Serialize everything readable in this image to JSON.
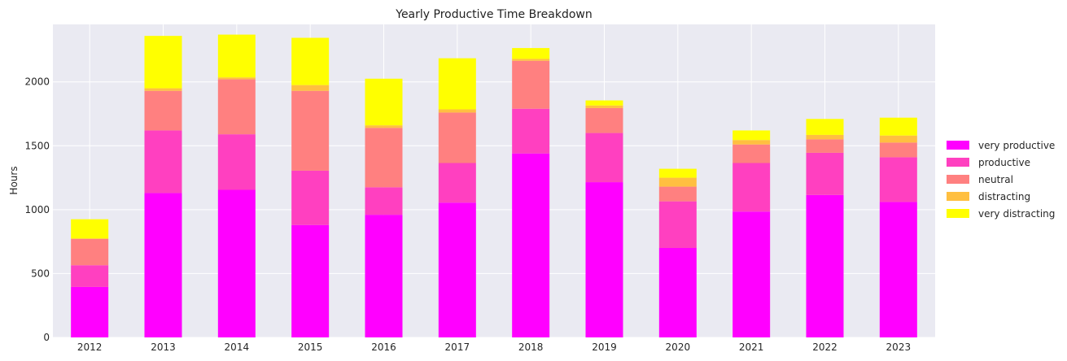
{
  "chart_data": {
    "type": "bar",
    "stacked": true,
    "title": "Yearly Productive Time Breakdown",
    "xlabel": "",
    "ylabel": "Hours",
    "ylim": [
      0,
      2450
    ],
    "yticks": [
      "0",
      "500",
      "1000",
      "1500",
      "2000"
    ],
    "grid": true,
    "legend_position": "right",
    "categories": [
      "2012",
      "2013",
      "2014",
      "2015",
      "2016",
      "2017",
      "2018",
      "2019",
      "2020",
      "2021",
      "2022",
      "2023"
    ],
    "series": [
      {
        "name": "very productive",
        "color": "#ff00ff",
        "values": [
          395,
          1130,
          1155,
          880,
          960,
          1055,
          1440,
          1215,
          700,
          985,
          1115,
          1060
        ]
      },
      {
        "name": "productive",
        "color": "#ff40c0",
        "values": [
          170,
          490,
          435,
          425,
          215,
          310,
          350,
          385,
          365,
          380,
          330,
          350
        ]
      },
      {
        "name": "neutral",
        "color": "#ff8080",
        "values": [
          205,
          310,
          430,
          625,
          465,
          395,
          375,
          195,
          115,
          145,
          105,
          115
        ]
      },
      {
        "name": "distracting",
        "color": "#ffbf40",
        "values": [
          5,
          20,
          15,
          45,
          20,
          25,
          15,
          20,
          70,
          35,
          35,
          55
        ]
      },
      {
        "name": "very distracting",
        "color": "#ffff00",
        "values": [
          150,
          410,
          335,
          370,
          365,
          400,
          85,
          40,
          70,
          75,
          125,
          140
        ]
      }
    ]
  }
}
